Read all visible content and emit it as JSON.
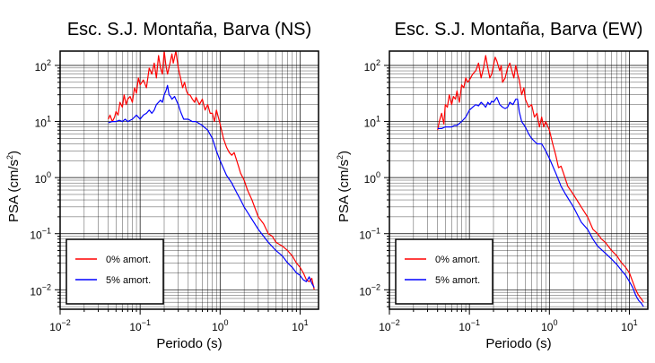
{
  "colors": {
    "series_0": "#ff0000",
    "series_5": "#0000ff",
    "grid": "#000000"
  },
  "chart_data": [
    {
      "type": "line",
      "title": "Esc. S.J. Montaña, Barva (NS)",
      "xlabel": "Periodo (s)",
      "ylabel_main": "PSA (cm/s",
      "ylabel_sup": "2",
      "ylabel_tail": ")",
      "xscale": "log",
      "yscale": "log",
      "xlim": [
        0.01,
        17
      ],
      "ylim": [
        0.0045,
        180
      ],
      "x_ticks": [
        {
          "base": "10",
          "exp": "−2",
          "value": 0.01
        },
        {
          "base": "10",
          "exp": "−1",
          "value": 0.1
        },
        {
          "base": "10",
          "exp": "0",
          "value": 1
        },
        {
          "base": "10",
          "exp": "1",
          "value": 10
        }
      ],
      "y_ticks": [
        {
          "base": "10",
          "exp": "−2",
          "value": 0.01
        },
        {
          "base": "10",
          "exp": "−1",
          "value": 0.1
        },
        {
          "base": "10",
          "exp": "0",
          "value": 1
        },
        {
          "base": "10",
          "exp": "1",
          "value": 10
        },
        {
          "base": "10",
          "exp": "2",
          "value": 100
        }
      ],
      "grid": true,
      "legend_position": "bottom-left",
      "series": [
        {
          "name": "0% amort.",
          "color": "#ff0000",
          "x": [
            0.04,
            0.042,
            0.045,
            0.048,
            0.05,
            0.053,
            0.056,
            0.06,
            0.063,
            0.067,
            0.07,
            0.075,
            0.08,
            0.085,
            0.09,
            0.095,
            0.1,
            0.11,
            0.12,
            0.13,
            0.14,
            0.15,
            0.16,
            0.17,
            0.18,
            0.19,
            0.2,
            0.21,
            0.22,
            0.24,
            0.25,
            0.26,
            0.28,
            0.3,
            0.32,
            0.34,
            0.36,
            0.38,
            0.4,
            0.42,
            0.45,
            0.48,
            0.5,
            0.55,
            0.6,
            0.65,
            0.7,
            0.75,
            0.8,
            0.85,
            0.9,
            0.95,
            1.0,
            1.1,
            1.2,
            1.3,
            1.4,
            1.5,
            1.7,
            1.8,
            2.0,
            2.2,
            2.5,
            3.0,
            3.5,
            4.0,
            4.5,
            5.0,
            6.0,
            7.0,
            8.0,
            9.0,
            10.0,
            11.0,
            12.0,
            13.0,
            14.0,
            15.0
          ],
          "y": [
            11,
            13,
            10,
            12,
            15,
            13,
            22,
            18,
            30,
            20,
            25,
            28,
            22,
            40,
            32,
            60,
            45,
            55,
            40,
            90,
            70,
            110,
            60,
            150,
            90,
            70,
            180,
            100,
            70,
            120,
            160,
            110,
            180,
            90,
            60,
            40,
            50,
            35,
            30,
            30,
            25,
            22,
            27,
            20,
            25,
            16,
            20,
            14,
            14,
            10,
            16,
            12,
            9,
            5,
            3.5,
            2.8,
            2.5,
            2.8,
            1.6,
            1.2,
            0.9,
            0.6,
            0.4,
            0.2,
            0.15,
            0.1,
            0.09,
            0.07,
            0.06,
            0.05,
            0.04,
            0.03,
            0.025,
            0.02,
            0.015,
            0.014,
            0.016,
            0.01
          ]
        },
        {
          "name": "5% amort.",
          "color": "#0000ff",
          "x": [
            0.04,
            0.045,
            0.05,
            0.055,
            0.06,
            0.065,
            0.07,
            0.08,
            0.09,
            0.1,
            0.11,
            0.12,
            0.13,
            0.14,
            0.15,
            0.16,
            0.17,
            0.18,
            0.19,
            0.2,
            0.21,
            0.22,
            0.23,
            0.24,
            0.25,
            0.27,
            0.3,
            0.32,
            0.35,
            0.4,
            0.45,
            0.5,
            0.6,
            0.7,
            0.8,
            0.9,
            1.0,
            1.2,
            1.4,
            1.6,
            1.8,
            2.0,
            2.5,
            3.0,
            3.5,
            4.0,
            5.0,
            6.0,
            7.0,
            8.0,
            9.0,
            10.0,
            11.0,
            12.0,
            13.0,
            14.0,
            15.0
          ],
          "y": [
            9.5,
            10,
            10,
            10.5,
            10,
            11,
            10,
            11,
            13,
            11,
            13,
            14,
            16,
            14,
            16,
            20,
            22,
            24,
            22,
            30,
            35,
            44,
            30,
            28,
            25,
            28,
            20,
            15,
            11,
            11,
            10,
            10,
            8.5,
            7,
            5,
            3,
            2,
            1.1,
            0.8,
            0.55,
            0.4,
            0.3,
            0.18,
            0.12,
            0.09,
            0.07,
            0.05,
            0.04,
            0.03,
            0.025,
            0.02,
            0.018,
            0.015,
            0.014,
            0.017,
            0.013,
            0.011
          ]
        }
      ]
    },
    {
      "type": "line",
      "title": "Esc. S.J. Montaña, Barva (EW)",
      "xlabel": "Periodo (s)",
      "ylabel_main": "PSA (cm/s",
      "ylabel_sup": "2",
      "ylabel_tail": ")",
      "xscale": "log",
      "yscale": "log",
      "xlim": [
        0.01,
        17
      ],
      "ylim": [
        0.0045,
        180
      ],
      "x_ticks": [
        {
          "base": "10",
          "exp": "−2",
          "value": 0.01
        },
        {
          "base": "10",
          "exp": "−1",
          "value": 0.1
        },
        {
          "base": "10",
          "exp": "0",
          "value": 1
        },
        {
          "base": "10",
          "exp": "1",
          "value": 10
        }
      ],
      "y_ticks": [
        {
          "base": "10",
          "exp": "−2",
          "value": 0.01
        },
        {
          "base": "10",
          "exp": "−1",
          "value": 0.1
        },
        {
          "base": "10",
          "exp": "0",
          "value": 1
        },
        {
          "base": "10",
          "exp": "1",
          "value": 10
        },
        {
          "base": "10",
          "exp": "2",
          "value": 100
        }
      ],
      "grid": true,
      "legend_position": "bottom-left",
      "series": [
        {
          "name": "0% amort.",
          "color": "#ff0000",
          "x": [
            0.04,
            0.042,
            0.045,
            0.048,
            0.05,
            0.053,
            0.056,
            0.06,
            0.063,
            0.067,
            0.07,
            0.075,
            0.08,
            0.085,
            0.09,
            0.095,
            0.1,
            0.11,
            0.12,
            0.13,
            0.14,
            0.15,
            0.16,
            0.17,
            0.18,
            0.19,
            0.2,
            0.21,
            0.22,
            0.24,
            0.25,
            0.26,
            0.28,
            0.3,
            0.32,
            0.34,
            0.36,
            0.38,
            0.4,
            0.42,
            0.45,
            0.48,
            0.5,
            0.55,
            0.6,
            0.65,
            0.7,
            0.75,
            0.8,
            0.85,
            0.9,
            1.0,
            1.1,
            1.2,
            1.3,
            1.4,
            1.5,
            1.7,
            2.0,
            2.5,
            3.0,
            3.5,
            4.0,
            4.5,
            5.0,
            6.0,
            7.0,
            8.0,
            9.0,
            10.0,
            11.0,
            12.0,
            13.0,
            14.0,
            15.0
          ],
          "y": [
            7,
            10,
            14,
            9,
            20,
            18,
            30,
            20,
            28,
            25,
            35,
            22,
            45,
            40,
            60,
            50,
            55,
            70,
            80,
            110,
            60,
            90,
            150,
            90,
            60,
            70,
            100,
            140,
            120,
            80,
            100,
            50,
            60,
            90,
            110,
            80,
            60,
            100,
            70,
            55,
            30,
            40,
            25,
            18,
            20,
            12,
            14,
            8,
            12,
            8,
            10,
            7,
            4,
            2.5,
            1.5,
            1.6,
            1.2,
            0.7,
            0.5,
            0.3,
            0.2,
            0.12,
            0.1,
            0.08,
            0.07,
            0.05,
            0.04,
            0.03,
            0.025,
            0.02,
            0.014,
            0.01,
            0.008,
            0.007,
            0.006
          ]
        },
        {
          "name": "5% amort.",
          "color": "#0000ff",
          "x": [
            0.04,
            0.045,
            0.05,
            0.055,
            0.06,
            0.065,
            0.07,
            0.08,
            0.09,
            0.1,
            0.11,
            0.12,
            0.13,
            0.14,
            0.15,
            0.16,
            0.17,
            0.18,
            0.19,
            0.2,
            0.22,
            0.24,
            0.26,
            0.28,
            0.3,
            0.32,
            0.35,
            0.38,
            0.4,
            0.42,
            0.45,
            0.5,
            0.55,
            0.6,
            0.7,
            0.8,
            0.9,
            1.0,
            1.2,
            1.4,
            1.6,
            2.0,
            2.5,
            3.0,
            3.5,
            4.0,
            5.0,
            6.0,
            7.0,
            8.0,
            9.0,
            10.0,
            11.0,
            12.0,
            13.0,
            14.0,
            15.0
          ],
          "y": [
            7.5,
            7.5,
            8,
            8,
            8,
            8.5,
            8.5,
            10,
            12,
            16,
            18,
            20,
            19,
            22,
            20,
            18,
            22,
            20,
            23,
            22,
            27,
            20,
            18,
            17,
            18,
            22,
            20,
            25,
            25,
            15,
            10,
            8,
            6,
            5,
            4,
            4,
            3,
            2.2,
            1.2,
            0.7,
            0.5,
            0.3,
            0.16,
            0.12,
            0.08,
            0.06,
            0.045,
            0.035,
            0.028,
            0.022,
            0.018,
            0.014,
            0.011,
            0.008,
            0.0065,
            0.0058,
            0.005
          ]
        }
      ]
    }
  ]
}
